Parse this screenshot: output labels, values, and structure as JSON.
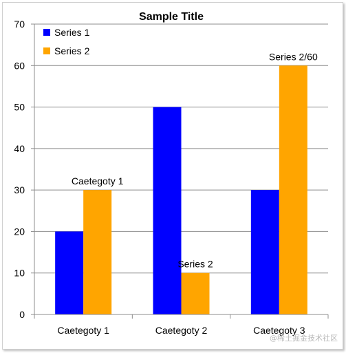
{
  "chart_data": {
    "type": "bar",
    "title": "Sample Title",
    "categories": [
      "Caetegoty 1",
      "Caetegoty 2",
      "Caetegoty 3"
    ],
    "series": [
      {
        "name": "Series 1",
        "color": "#0000ff",
        "values": [
          20,
          50,
          30
        ]
      },
      {
        "name": "Series 2",
        "color": "#ffa500",
        "values": [
          30,
          10,
          60
        ]
      }
    ],
    "ylim": [
      0,
      70
    ],
    "yticks": [
      0,
      10,
      20,
      30,
      40,
      50,
      60,
      70
    ],
    "grid": true,
    "legend_position": "top-left",
    "annotations": [
      {
        "text": "Caetegoty 1",
        "series": 1,
        "category": 0
      },
      {
        "text": "Series 2",
        "series": 1,
        "category": 1
      },
      {
        "text": "Series 2/60",
        "series": 1,
        "category": 2
      }
    ]
  },
  "watermark": "@稀土掘金技术社区"
}
